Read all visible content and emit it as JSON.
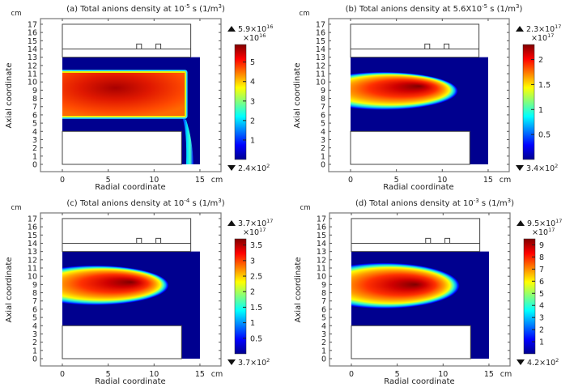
{
  "colors": {
    "background_field": "#00008f",
    "jet": [
      "#00008f",
      "#0000ff",
      "#00ffff",
      "#ffff00",
      "#ff0000",
      "#800000"
    ],
    "frame": "#777777",
    "geometry_outline": "#444444"
  },
  "chart_data": [
    {
      "type": "heatmap",
      "panel": "a",
      "title": {
        "pre": "(a) Total anions density at 10",
        "exp": "-5",
        "mid": " s (1/m",
        "exp2": "3",
        "post": ")"
      },
      "xlabel": "Radial coordinate",
      "ylabel": "Axial coordinate",
      "x_unit": "cm",
      "y_unit": "cm",
      "xlim": [
        -2.3,
        17.2
      ],
      "ylim": [
        -0.9,
        17.7
      ],
      "x_ticks": [
        "0",
        "5",
        "10",
        "15"
      ],
      "y_ticks": [
        "0",
        "1",
        "2",
        "3",
        "4",
        "5",
        "6",
        "7",
        "8",
        "9",
        "10",
        "11",
        "12",
        "13",
        "14",
        "15",
        "16",
        "17"
      ],
      "colorbar": {
        "max_label": "5.9×10",
        "max_exp": "16",
        "multiplier": "×10",
        "multiplier_exp": "16",
        "min_label": "2.4×10",
        "min_exp": "2",
        "max": 5.9,
        "min": 0,
        "ticks": [
          "1",
          "2",
          "3",
          "4",
          "5"
        ]
      },
      "distribution": "uniform-slab",
      "peak": {
        "r": 7,
        "z": 9.5,
        "value": 5.9
      },
      "extent": {
        "r": [
          0,
          13.4
        ],
        "z": [
          5.8,
          11.2
        ]
      }
    },
    {
      "type": "heatmap",
      "panel": "b",
      "title": {
        "pre": "(b) Total anions density at 5.6X10",
        "exp": "-5",
        "mid": " s (1/m",
        "exp2": "3",
        "post": ")"
      },
      "xlabel": "Radial coordinate",
      "ylabel": "Axial coordinate",
      "x_unit": "cm",
      "y_unit": "cm",
      "xlim": [
        -2.3,
        17.2
      ],
      "ylim": [
        -0.9,
        17.7
      ],
      "x_ticks": [
        "0",
        "5",
        "10",
        "15"
      ],
      "y_ticks": [
        "0",
        "1",
        "2",
        "3",
        "4",
        "5",
        "6",
        "7",
        "8",
        "9",
        "10",
        "11",
        "12",
        "13",
        "14",
        "15",
        "16",
        "17"
      ],
      "colorbar": {
        "max_label": "2.3×10",
        "max_exp": "17",
        "multiplier": "×10",
        "multiplier_exp": "17",
        "min_label": "3.4×10",
        "min_exp": "2",
        "max": 2.3,
        "min": 0,
        "ticks": [
          "0.5",
          "1",
          "1.5",
          "2"
        ]
      },
      "distribution": "plume",
      "peak": {
        "r": 7.5,
        "z": 9.5,
        "value": 2.3
      },
      "extent": {
        "r": [
          0,
          11.7
        ],
        "z": [
          6.7,
          11.1
        ]
      }
    },
    {
      "type": "heatmap",
      "panel": "c",
      "title": {
        "pre": "(c) Total anions density at 10",
        "exp": "-4",
        "mid": " s (1/m",
        "exp2": "3",
        "post": ")"
      },
      "xlabel": "Radial coordinate",
      "ylabel": "Axial coordinate",
      "x_unit": "cm",
      "y_unit": "cm",
      "xlim": [
        -2.3,
        17.2
      ],
      "ylim": [
        -0.9,
        17.7
      ],
      "x_ticks": [
        "0",
        "5",
        "10",
        "15"
      ],
      "y_ticks": [
        "0",
        "1",
        "2",
        "3",
        "4",
        "5",
        "6",
        "7",
        "8",
        "9",
        "10",
        "11",
        "12",
        "13",
        "14",
        "15",
        "16",
        "17"
      ],
      "colorbar": {
        "max_label": "3.7×10",
        "max_exp": "17",
        "multiplier": "×10",
        "multiplier_exp": "17",
        "min_label": "3.7×10",
        "min_exp": "2",
        "max": 3.7,
        "min": 0,
        "ticks": [
          "0.5",
          "1",
          "1.5",
          "2",
          "2.5",
          "3",
          "3.5"
        ]
      },
      "distribution": "plume",
      "peak": {
        "r": 7.5,
        "z": 9.3,
        "value": 3.7
      },
      "extent": {
        "r": [
          0,
          11.6
        ],
        "z": [
          6.6,
          11.2
        ]
      }
    },
    {
      "type": "heatmap",
      "panel": "d",
      "title": {
        "pre": "(d) Total anions density at 10",
        "exp": "-3",
        "mid": " s (1/m",
        "exp2": "3",
        "post": ")"
      },
      "xlabel": "Radial coordinate",
      "ylabel": "Axial coordinate",
      "x_unit": "cm",
      "y_unit": "cm",
      "xlim": [
        -2.3,
        17.2
      ],
      "ylim": [
        -0.9,
        17.7
      ],
      "x_ticks": [
        "0",
        "5",
        "10",
        "15"
      ],
      "y_ticks": [
        "0",
        "1",
        "2",
        "3",
        "4",
        "5",
        "6",
        "7",
        "8",
        "9",
        "10",
        "11",
        "12",
        "13",
        "14",
        "15",
        "16",
        "17"
      ],
      "colorbar": {
        "max_label": "9.5×10",
        "max_exp": "17",
        "multiplier": "×10",
        "multiplier_exp": "17",
        "min_label": "4.2×10",
        "min_exp": "2",
        "max": 9.5,
        "min": 0,
        "ticks": [
          "1",
          "2",
          "3",
          "4",
          "5",
          "6",
          "7",
          "8",
          "9"
        ]
      },
      "distribution": "plume",
      "peak": {
        "r": 7,
        "z": 9,
        "value": 9.5
      },
      "extent": {
        "r": [
          0,
          11.8
        ],
        "z": [
          6.2,
          11.5
        ]
      }
    }
  ]
}
